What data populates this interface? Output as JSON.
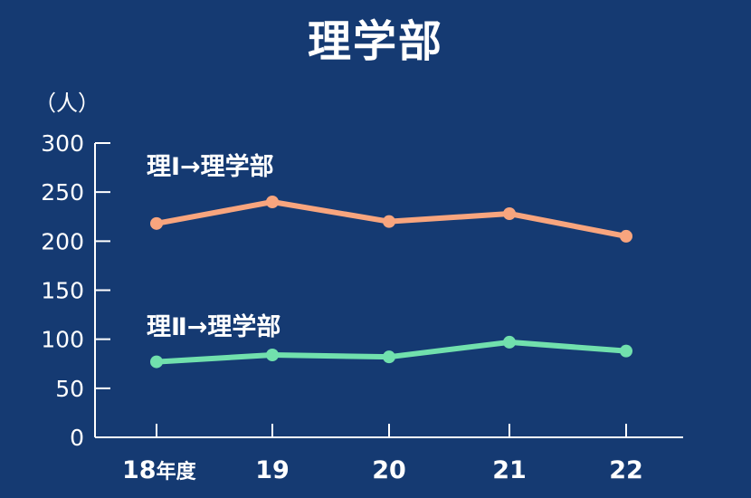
{
  "chart_data": {
    "type": "line",
    "title": "理学部",
    "ylabel": "（人）",
    "xlabel": "",
    "categories": [
      "18",
      "19",
      "20",
      "21",
      "22"
    ],
    "category_suffix": "年度",
    "ylim": [
      0,
      300
    ],
    "yticks": [
      0,
      50,
      100,
      150,
      200,
      250,
      300
    ],
    "grid": false,
    "legend": "inline",
    "series": [
      {
        "name": "理Ⅰ→理学部",
        "values": [
          218,
          240,
          220,
          228,
          205
        ],
        "color": "#f8a57e"
      },
      {
        "name": "理Ⅱ→理学部",
        "values": [
          77,
          84,
          82,
          97,
          88
        ],
        "color": "#71e0ad"
      }
    ],
    "colors": {
      "background": "#153a72",
      "axis": "#ffffff",
      "text": "#ffffff"
    }
  }
}
